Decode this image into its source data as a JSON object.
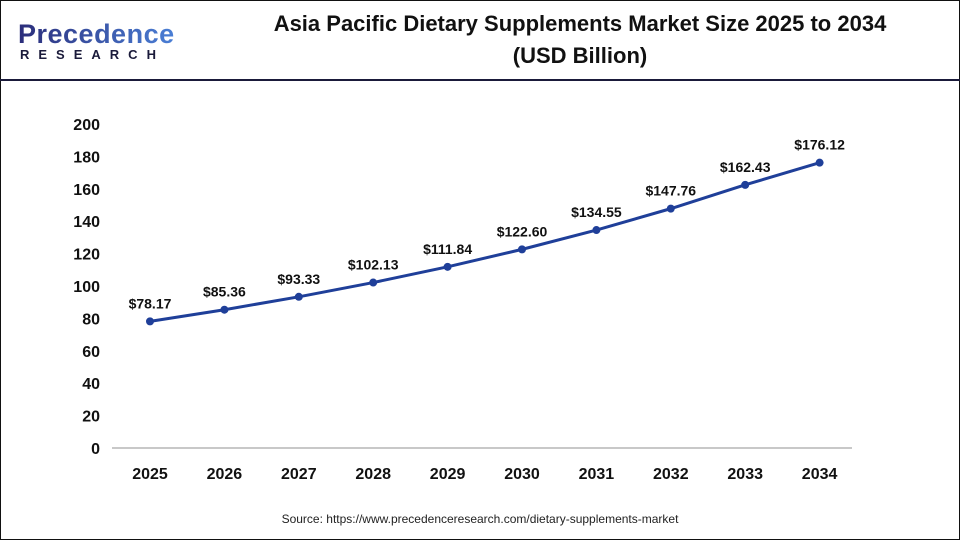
{
  "logo": {
    "top": "Precedence",
    "bottom": "RESEARCH"
  },
  "source": "Source: https://www.precedenceresearch.com/dietary-supplements-market",
  "colors": {
    "line": "#1f3f99",
    "axis": "#c8c8c8",
    "text": "#111111"
  },
  "chart_data": {
    "type": "line",
    "title": "Asia Pacific Dietary Supplements Market Size 2025 to 2034 (USD Billion)",
    "title_lines": [
      "Asia Pacific Dietary Supplements Market Size 2025 to 2034",
      "(USD Billion)"
    ],
    "xlabel": "",
    "ylabel": "",
    "categories": [
      "2025",
      "2026",
      "2027",
      "2028",
      "2029",
      "2030",
      "2031",
      "2032",
      "2033",
      "2034"
    ],
    "values": [
      78.17,
      85.36,
      93.33,
      102.13,
      111.84,
      122.6,
      134.55,
      147.76,
      162.43,
      176.12
    ],
    "data_labels": [
      "$78.17",
      "$85.36",
      "$93.33",
      "$102.13",
      "$111.84",
      "$122.60",
      "$134.55",
      "$147.76",
      "$162.43",
      "$176.12"
    ],
    "ylim": [
      0,
      200
    ],
    "yticks": [
      "0",
      "20",
      "40",
      "60",
      "80",
      "100",
      "120",
      "140",
      "160",
      "180",
      "200"
    ],
    "grid": false,
    "legend": "none"
  }
}
